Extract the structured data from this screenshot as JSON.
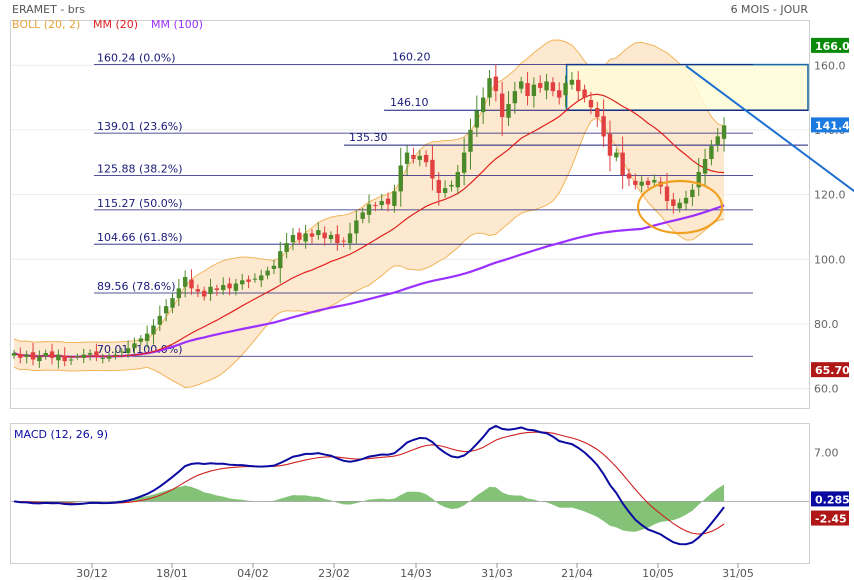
{
  "header": {
    "symbol": "ERAMET - brs",
    "period": "6 MOIS - JOUR",
    "indicators": [
      {
        "label": "BOLL (20, 2)",
        "color": "#e8a33c"
      },
      {
        "label": "MM (20)",
        "color": "#e02020"
      },
      {
        "label": "MM (100)",
        "color": "#9b30ff"
      }
    ]
  },
  "colors": {
    "up": "#4a8a2a",
    "down": "#e04040",
    "boll_fill": "#fde9cf",
    "boll_line": "#f2b45a",
    "fib_line": "#1a1a7a",
    "trend": "#1e6fd0",
    "ellipse": "#f0a020",
    "macd": "#0a0aa0",
    "signal": "#d02020",
    "hist": "#5aae4a",
    "zone_fill": "#fffbd8",
    "zone_border": "#1b6aa5"
  },
  "chart_data": [
    {
      "type": "candlestick",
      "title": "ERAMET - brs",
      "x_ticks": [
        "30/12",
        "18/01",
        "04/02",
        "23/02",
        "14/03",
        "31/03",
        "21/04",
        "10/05",
        "31/05"
      ],
      "y_ticks": [
        60,
        80,
        100,
        120,
        140,
        160
      ],
      "ylim": [
        54,
        174
      ],
      "price_badges": [
        {
          "label": "166.0",
          "value": 166.0,
          "color": "#0a8a0a"
        },
        {
          "label": "141.4",
          "value": 141.4,
          "color": "#1a7ae0"
        },
        {
          "label": "65.70",
          "value": 65.7,
          "color": "#b01818"
        }
      ],
      "fibonacci": [
        {
          "label": "160.24  (0.0%)",
          "value": 160.24
        },
        {
          "label": "139.01  (23.6%)",
          "value": 139.01
        },
        {
          "label": "125.88  (38.2%)",
          "value": 125.88
        },
        {
          "label": "115.27  (50.0%)",
          "value": 115.27
        },
        {
          "label": "104.66  (61.8%)",
          "value": 104.66
        },
        {
          "label": "89.56  (78.6%)",
          "value": 89.56
        },
        {
          "label": "70.01  (100.0%)",
          "value": 70.01
        }
      ],
      "annotations": [
        {
          "label": "160.20",
          "value": 160.2
        },
        {
          "label": "146.10",
          "value": 146.1
        },
        {
          "label": "135.30",
          "value": 135.3
        }
      ],
      "resistance_zone": {
        "from": 146.1,
        "to": 160.2,
        "start_index": 87
      },
      "trendline": {
        "start": [
          106,
          159.8
        ],
        "end": [
          136,
          116.0
        ]
      },
      "closes": [
        71.0,
        69.5,
        70.5,
        69.0,
        70.0,
        71.0,
        69.5,
        70.5,
        68.5,
        69.0,
        70.0,
        70.5,
        71.0,
        70.0,
        69.5,
        70.0,
        70.5,
        71.5,
        72.5,
        74.0,
        75.5,
        77.0,
        79.5,
        82.5,
        85.5,
        88.0,
        91.0,
        94.5,
        91.0,
        90.0,
        88.5,
        91.5,
        90.5,
        92.0,
        91.0,
        92.5,
        93.5,
        93.0,
        94.0,
        95.0,
        96.5,
        98.0,
        102.5,
        105.0,
        107.5,
        106.0,
        108.0,
        107.0,
        109.0,
        106.5,
        107.5,
        105.0,
        105.5,
        108.0,
        112.0,
        114.5,
        117.0,
        116.5,
        118.0,
        117.0,
        121.0,
        129.0,
        133.0,
        131.0,
        132.0,
        130.0,
        125.0,
        120.5,
        122.0,
        123.0,
        127.0,
        133.0,
        140.0,
        146.0,
        150.0,
        156.0,
        152.0,
        144.0,
        148.0,
        152.0,
        155.0,
        150.5,
        154.0,
        153.0,
        155.0,
        152.0,
        150.0,
        154.5,
        155.5,
        152.0,
        150.0,
        147.0,
        144.0,
        138.0,
        132.0,
        133.0,
        126.0,
        125.0,
        123.0,
        124.0,
        123.0,
        124.5,
        122.5,
        118.0,
        116.5,
        117.5,
        119.0,
        121.5,
        127.0,
        131.0,
        135.0,
        138.0,
        141.4
      ],
      "macd_panel": {
        "title": "MACD (12, 26, 9)",
        "y_ticks": [
          7.0
        ],
        "y_tick_labels": [
          "7.00"
        ],
        "ylim": [
          -8.8,
          11.2
        ],
        "badges": [
          {
            "label": "0.285",
            "value": 0.285,
            "color": "#0a0aa0"
          },
          {
            "label": "-2.45",
            "value": -2.45,
            "color": "#b01818"
          }
        ]
      }
    }
  ]
}
